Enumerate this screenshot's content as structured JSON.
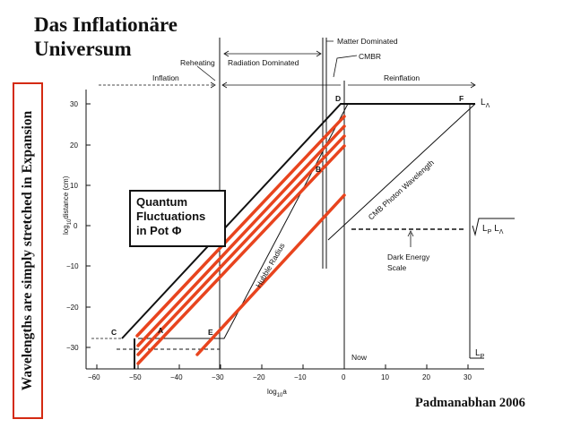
{
  "slide": {
    "title_line1": "Das Inflationäre",
    "title_line2": "Universum",
    "side_text": "Wavelengths are simply stretched in Expansion",
    "credit": "Padmanabhan 2006"
  },
  "quantum_box": {
    "line1": "Quantum",
    "line2": "Fluctuations",
    "line3": "in Pot Φ"
  },
  "epochs": {
    "reheating": "Reheating",
    "inflation": "Inflation",
    "radiation": "Radiation Dominated",
    "matter": "Matter Dominated",
    "cmbr": "CMBR",
    "reinflation": "Reinflation"
  },
  "curve_labels": {
    "hubble_radius": "Hubble Radius",
    "cmb_wavelength": "CMB Photon Wavelength",
    "dark_energy_1": "Dark Energy",
    "dark_energy_2": "Scale",
    "now": "Now",
    "l_lambda": "L",
    "l_lambda_sub": "Λ",
    "l_p": "L",
    "l_p_sub": "P",
    "sqrt_lp": "L",
    "sqrt_lp_sub": "P",
    "sqrt_ll": "L",
    "sqrt_ll_sub": "Λ"
  },
  "points": {
    "C": "C",
    "A": "A",
    "E": "E",
    "D": "D",
    "F": "F",
    "B": "B"
  },
  "axes": {
    "y_label": "log",
    "y_label_sub": "10",
    "y_label_rest": "distance (cm)",
    "x_label": "log",
    "x_label_sub": "10",
    "x_label_rest": "a",
    "x_ticks": [
      "−60",
      "−50",
      "−40",
      "−30",
      "−20",
      "−10",
      "0",
      "10",
      "20",
      "30"
    ],
    "y_ticks": [
      "30",
      "20",
      "10",
      "0",
      "−10",
      "−20",
      "−30"
    ]
  },
  "colors": {
    "accent": "#e8441e",
    "ink": "#111111",
    "frame": "#d42a12"
  }
}
